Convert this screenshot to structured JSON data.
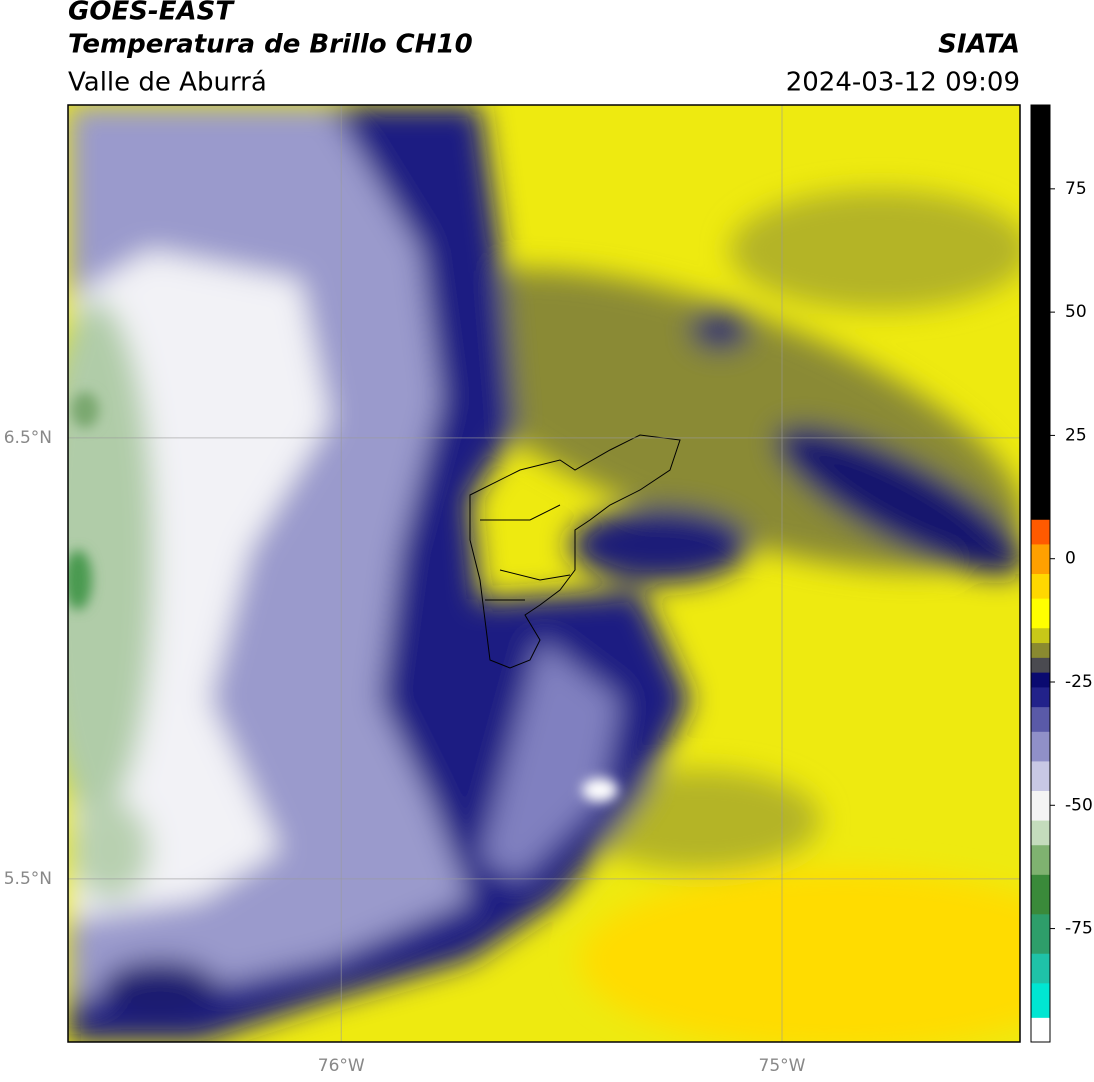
{
  "header": {
    "satellite": "GOES-EAST",
    "product": "Temperatura de Brillo CH10",
    "region": "Valle de Aburrá",
    "agency": "SIATA",
    "datetime": "2024-03-12 09:09"
  },
  "map": {
    "xlim": [
      -76.62,
      -74.46
    ],
    "ylim": [
      5.13,
      7.255
    ],
    "xticks": [
      {
        "value": -76,
        "label": "76°W"
      },
      {
        "value": -75,
        "label": "75°W"
      }
    ],
    "yticks": [
      {
        "value": 6.5,
        "label": "6.5°N"
      },
      {
        "value": 5.5,
        "label": "5.5°N"
      }
    ],
    "grid": true
  },
  "colorbar": {
    "ylim": [
      -98,
      92
    ],
    "yticks": [
      75,
      50,
      25,
      0,
      -25,
      -50,
      -75
    ],
    "colors": [
      {
        "value": -98,
        "color": "#ffffff"
      },
      {
        "value": -93,
        "color": "#00e6d2"
      },
      {
        "value": -86,
        "color": "#1fc2a8"
      },
      {
        "value": -80,
        "color": "#2e9e6a"
      },
      {
        "value": -72,
        "color": "#3a8a3a"
      },
      {
        "value": -64,
        "color": "#7fb270"
      },
      {
        "value": -58,
        "color": "#c4dcbc"
      },
      {
        "value": -53,
        "color": "#f4f4f4"
      },
      {
        "value": -47,
        "color": "#c8c8e4"
      },
      {
        "value": -41,
        "color": "#9090c8"
      },
      {
        "value": -35,
        "color": "#5a5aa8"
      },
      {
        "value": -30,
        "color": "#22228a"
      },
      {
        "value": -26,
        "color": "#0a0a70"
      },
      {
        "value": -23,
        "color": "#4a4a50"
      },
      {
        "value": -20,
        "color": "#8a8a30"
      },
      {
        "value": -17,
        "color": "#c8c818"
      },
      {
        "value": -14,
        "color": "#ffff00"
      },
      {
        "value": -8,
        "color": "#ffd800"
      },
      {
        "value": -3,
        "color": "#ffa000"
      },
      {
        "value": 3,
        "color": "#ff5a00"
      },
      {
        "value": 8,
        "color": "#000000"
      }
    ]
  }
}
